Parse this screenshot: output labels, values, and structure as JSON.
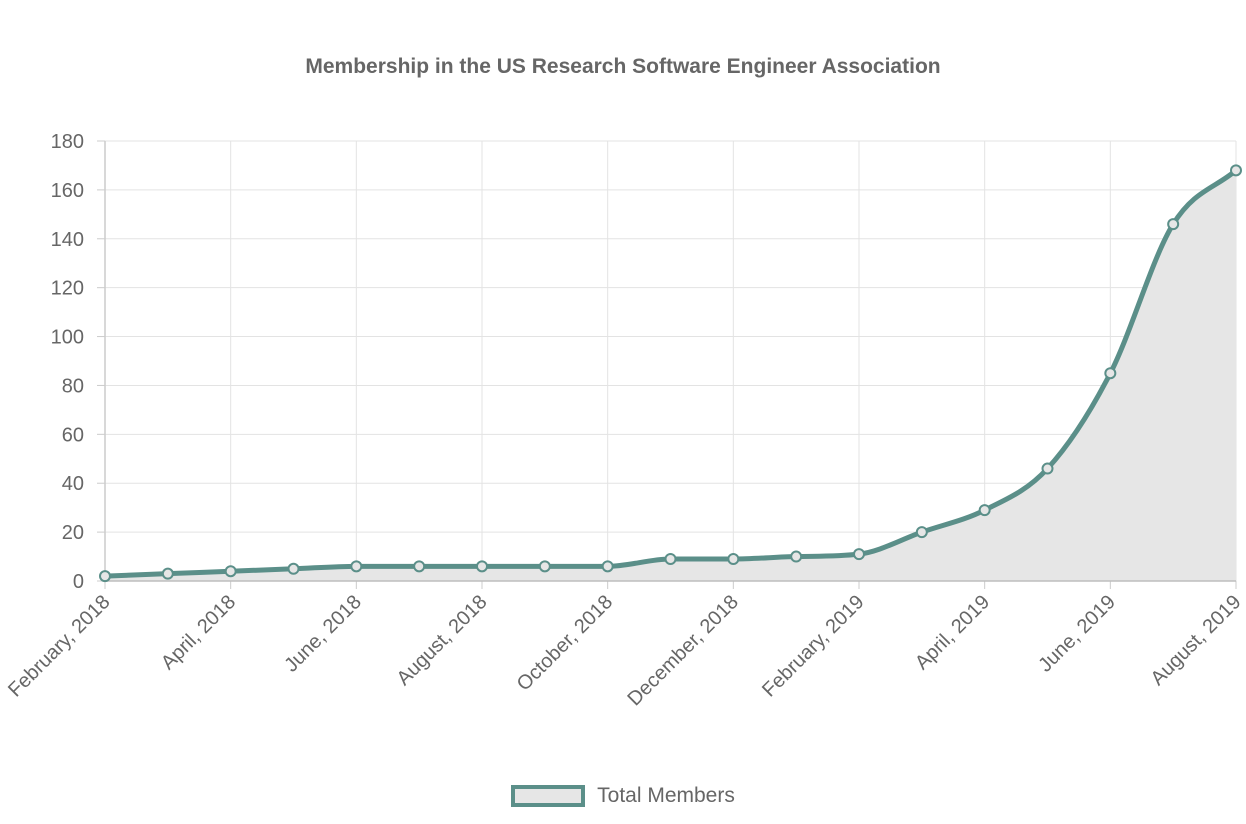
{
  "chart_data": {
    "type": "area",
    "title": "Membership in the US Research Software Engineer Association",
    "xlabel": "",
    "ylabel": "",
    "ylim": [
      0,
      180
    ],
    "yticks": [
      0,
      20,
      40,
      60,
      80,
      100,
      120,
      140,
      160,
      180
    ],
    "x_tick_labels": [
      "February, 2018",
      "April, 2018",
      "June, 2018",
      "August, 2018",
      "October, 2018",
      "December, 2018",
      "February, 2019",
      "April, 2019",
      "June, 2019",
      "August, 2019"
    ],
    "x": [
      "2018-02",
      "2018-03",
      "2018-04",
      "2018-05",
      "2018-06",
      "2018-07",
      "2018-08",
      "2018-09",
      "2018-10",
      "2018-11",
      "2018-12",
      "2019-01",
      "2019-02",
      "2019-03",
      "2019-04",
      "2019-05",
      "2019-06",
      "2019-07",
      "2019-08"
    ],
    "series": [
      {
        "name": "Total Members",
        "values": [
          2,
          3,
          4,
          5,
          6,
          6,
          6,
          6,
          6,
          9,
          9,
          10,
          11,
          20,
          29,
          46,
          85,
          146,
          168
        ]
      }
    ],
    "grid": true,
    "legend_position": "bottom",
    "colors": {
      "line": "#5b8f89",
      "fill": "#e6e6e6",
      "grid": "#e3e3e3",
      "axis": "#cccccc",
      "text": "#666666"
    }
  }
}
